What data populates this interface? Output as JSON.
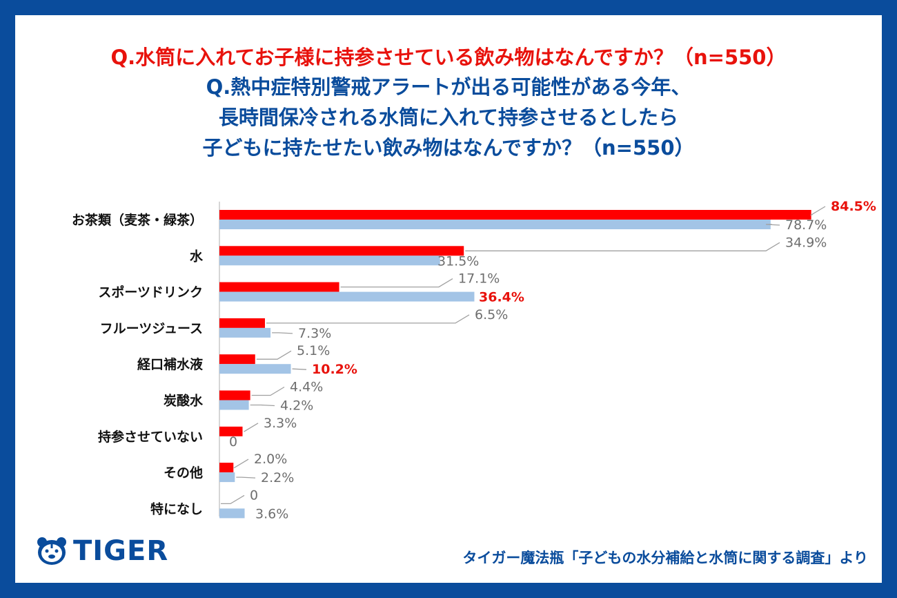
{
  "header": {
    "question1": "Q.水筒に入れてお子様に持参させている飲み物はなんですか？（n=550）",
    "question2_lines": [
      "Q.熱中症特別警戒アラートが出る可能性がある今年、",
      "長時間保冷される水筒に入れて持参させるとしたら",
      "子どもに持たせたい飲み物はなんですか？（n=550）"
    ]
  },
  "colors": {
    "series1": "#ff0000",
    "series2": "#a3c4e6",
    "highlight": "#e8120c",
    "brand": "#0a4c9c",
    "label_gray": "#6e6e6e"
  },
  "chart_data": {
    "type": "bar",
    "orientation": "horizontal",
    "categories": [
      "お茶類（麦茶・緑茶）",
      "水",
      "スポーツドリンク",
      "フルーツジュース",
      "経口補水液",
      "炭酸水",
      "持参させていない",
      "その他",
      "特になし"
    ],
    "series": [
      {
        "name": "持参させている飲み物",
        "values": [
          84.5,
          34.9,
          17.1,
          6.5,
          5.1,
          4.4,
          3.3,
          2.0,
          0
        ],
        "labels": [
          "84.5%",
          "34.9%",
          "17.1%",
          "6.5%",
          "5.1%",
          "4.4%",
          "3.3%",
          "2.0%",
          "0"
        ],
        "highlight": [
          true,
          false,
          false,
          false,
          false,
          false,
          false,
          false,
          false
        ]
      },
      {
        "name": "持たせたい飲み物",
        "values": [
          78.7,
          31.5,
          36.4,
          7.3,
          10.2,
          4.2,
          0,
          2.2,
          3.6
        ],
        "labels": [
          "78.7%",
          "31.5%",
          "36.4%",
          "7.3%",
          "10.2%",
          "4.2%",
          "0",
          "2.2%",
          "3.6%"
        ],
        "highlight": [
          false,
          false,
          true,
          false,
          true,
          false,
          false,
          false,
          false
        ]
      }
    ],
    "xlim": [
      0,
      100
    ],
    "grid": false,
    "legend": "none"
  },
  "footer": {
    "logo_text": "TIGER",
    "logo_icon": "tiger-face-icon",
    "source": "タイガー魔法瓶「子どもの水分補給と水筒に関する調査」より"
  }
}
